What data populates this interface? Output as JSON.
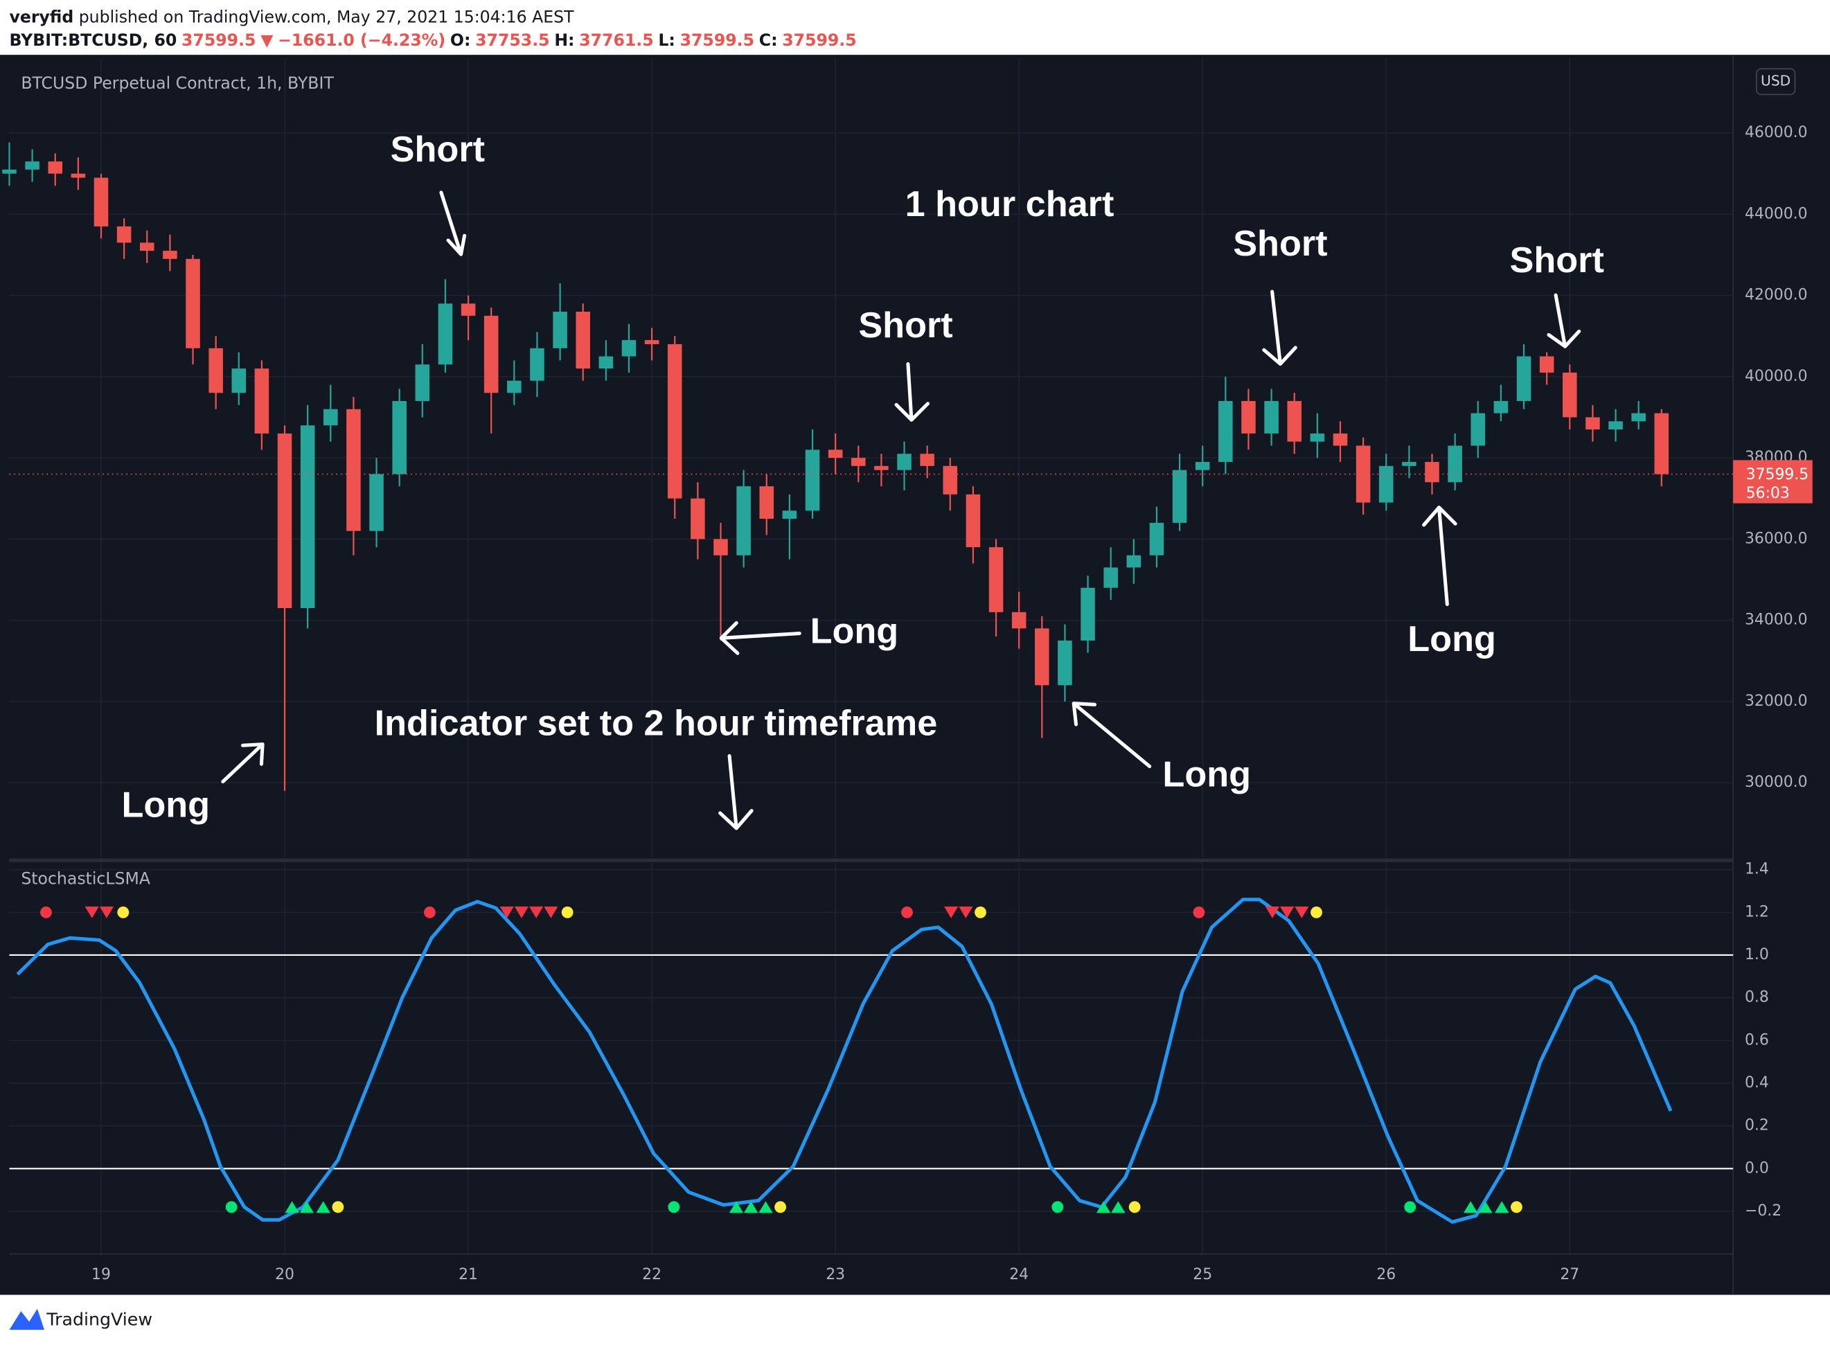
{
  "header": {
    "user": "veryfid",
    "published": "published on TradingView.com, May 27, 2021 15:04:16 AEST",
    "quote": [
      {
        "text": "BYBIT:BTCUSD, 60",
        "color": "#131722"
      },
      {
        "text": "37599.5",
        "color": "#ef5350"
      },
      {
        "text": "▼",
        "color": "#ef5350"
      },
      {
        "text": "−1661.0 (−4.23%)",
        "color": "#ef5350"
      },
      {
        "text": "O:",
        "color": "#131722"
      },
      {
        "text": "37753.5",
        "color": "#ef5350"
      },
      {
        "text": "H:",
        "color": "#131722"
      },
      {
        "text": "37761.5",
        "color": "#ef5350"
      },
      {
        "text": "L:",
        "color": "#131722"
      },
      {
        "text": "37599.5",
        "color": "#ef5350"
      },
      {
        "text": "C:",
        "color": "#131722"
      },
      {
        "text": "37599.5",
        "color": "#ef5350"
      }
    ]
  },
  "footer": {
    "logo": "TradingView"
  },
  "annotations": [
    "Short",
    "1 hour chart",
    "Short",
    "Short",
    "Short",
    "Long",
    "Long",
    "Long",
    "Long",
    "Indicator set to 2 hour timeframe"
  ],
  "chart_data": [
    {
      "type": "candlestick",
      "title": "BTCUSD Perpetual Contract, 1h, BYBIT",
      "currency": "USD",
      "up_color": "#26a69a",
      "down_color": "#ef5350",
      "grid": true,
      "x": [
        18.5,
        18.625,
        18.75,
        18.875,
        19,
        19.125,
        19.25,
        19.375,
        19.5,
        19.625,
        19.75,
        19.875,
        20,
        20.125,
        20.25,
        20.375,
        20.5,
        20.625,
        20.75,
        20.875,
        21,
        21.125,
        21.25,
        21.375,
        21.5,
        21.625,
        21.75,
        21.875,
        22,
        22.125,
        22.25,
        22.375,
        22.5,
        22.625,
        22.75,
        22.875,
        23,
        23.125,
        23.25,
        23.375,
        23.5,
        23.625,
        23.75,
        23.875,
        24,
        24.125,
        24.25,
        24.375,
        24.5,
        24.625,
        24.75,
        24.875,
        25,
        25.125,
        25.25,
        25.375,
        25.5,
        25.625,
        25.75,
        25.875,
        26,
        26.125,
        26.25,
        26.375,
        26.5,
        26.625,
        26.75,
        26.875,
        27,
        27.125,
        27.25,
        27.375,
        27.5
      ],
      "open": [
        45000,
        45100,
        45300,
        45000,
        44900,
        43700,
        43300,
        43100,
        42900,
        40700,
        39600,
        40200,
        38600,
        34300,
        38800,
        39200,
        36200,
        37600,
        39400,
        40300,
        41800,
        41500,
        39600,
        39900,
        40700,
        41600,
        40200,
        40500,
        40900,
        40800,
        37000,
        36000,
        35600,
        37300,
        36500,
        36700,
        38200,
        38000,
        37800,
        37700,
        38100,
        37800,
        37100,
        35800,
        34200,
        33800,
        32400,
        33500,
        34800,
        35300,
        35600,
        36400,
        37700,
        37900,
        39400,
        38600,
        39400,
        38400,
        38600,
        38300,
        36900,
        37800,
        37900,
        37400,
        38300,
        39100,
        39400,
        40500,
        40100,
        39000,
        38700,
        38900,
        39100
      ],
      "high": [
        45770,
        45600,
        45500,
        45400,
        45000,
        43900,
        43600,
        43500,
        43000,
        41000,
        40600,
        40400,
        38800,
        39300,
        39800,
        39500,
        38000,
        39700,
        40800,
        42400,
        42000,
        41700,
        40400,
        41100,
        42300,
        41800,
        40900,
        41300,
        41200,
        41000,
        37400,
        36400,
        37700,
        37600,
        37100,
        38700,
        38600,
        38300,
        38100,
        38400,
        38300,
        38000,
        37300,
        36000,
        34700,
        34100,
        33900,
        35100,
        35800,
        36000,
        36800,
        38100,
        38300,
        40000,
        39700,
        39700,
        39600,
        39100,
        38900,
        38500,
        38100,
        38300,
        38100,
        38600,
        39400,
        39800,
        40800,
        40600,
        40300,
        39300,
        39200,
        39400,
        39200
      ],
      "low": [
        44700,
        44800,
        44700,
        44600,
        43400,
        42900,
        42800,
        42600,
        40300,
        39200,
        39300,
        38200,
        29800,
        33800,
        38400,
        35600,
        35800,
        37300,
        39000,
        40100,
        40900,
        38600,
        39300,
        39500,
        40400,
        39900,
        39900,
        40100,
        40400,
        36500,
        35500,
        33500,
        35300,
        36100,
        35500,
        36500,
        37600,
        37400,
        37300,
        37200,
        37500,
        36700,
        35400,
        33600,
        33300,
        31100,
        32000,
        33200,
        34500,
        34900,
        35300,
        36200,
        37300,
        37600,
        38200,
        38300,
        38100,
        38000,
        37900,
        36600,
        36700,
        37500,
        37100,
        37200,
        38000,
        38900,
        39200,
        39800,
        38700,
        38400,
        38400,
        38700,
        37300
      ],
      "close": [
        45100,
        45300,
        45000,
        44900,
        43700,
        43300,
        43100,
        42900,
        40700,
        39600,
        40200,
        38600,
        34300,
        38800,
        39200,
        36200,
        37600,
        39400,
        40300,
        41800,
        41500,
        39600,
        39900,
        40700,
        41600,
        40200,
        40500,
        40900,
        40800,
        37000,
        36000,
        35600,
        37300,
        36500,
        36700,
        38200,
        38000,
        37800,
        37700,
        38100,
        37800,
        37100,
        35800,
        34200,
        33800,
        32400,
        33500,
        34800,
        35300,
        35600,
        36400,
        37700,
        37900,
        39400,
        38600,
        39400,
        38400,
        38600,
        38300,
        36900,
        37800,
        37900,
        37400,
        38300,
        39100,
        39400,
        40500,
        40100,
        39000,
        38700,
        38900,
        39100,
        37599.5
      ],
      "price_tag": {
        "value": 37599.5,
        "countdown": "56:03",
        "color": "#ef5350"
      },
      "xlim": [
        18.5,
        27.89
      ],
      "ylim": [
        28160,
        47840
      ],
      "yticks": [
        {
          "value": 30000,
          "label": "30000.0"
        },
        {
          "value": 32000,
          "label": "32000.0"
        },
        {
          "value": 34000,
          "label": "34000.0"
        },
        {
          "value": 36000,
          "label": "36000.0"
        },
        {
          "value": 38000,
          "label": "38000.0"
        },
        {
          "value": 40000,
          "label": "40000.0"
        },
        {
          "value": 42000,
          "label": "42000.0"
        },
        {
          "value": 44000,
          "label": "44000.0"
        },
        {
          "value": 46000,
          "label": "46000.0"
        }
      ]
    },
    {
      "type": "line",
      "grid": true,
      "x": [
        18.545,
        18.71,
        18.83,
        18.99,
        19.08,
        19.21,
        19.4,
        19.56,
        19.65,
        19.78,
        19.88,
        19.97,
        20.1,
        20.29,
        20.48,
        20.64,
        20.8,
        20.93,
        21.05,
        21.15,
        21.28,
        21.47,
        21.66,
        21.85,
        22.01,
        22.2,
        22.39,
        22.58,
        22.77,
        22.96,
        23.15,
        23.31,
        23.47,
        23.56,
        23.69,
        23.85,
        24.01,
        24.17,
        24.33,
        24.45,
        24.58,
        24.74,
        24.89,
        25.05,
        25.22,
        25.31,
        25.47,
        25.63,
        25.82,
        26.01,
        26.17,
        26.36,
        26.49,
        26.65,
        26.84,
        27.03,
        27.14,
        27.22,
        27.35,
        27.55
      ],
      "series": [
        {
          "name": "StochasticLSMA",
          "color": "#2196f3",
          "values": [
            0.91,
            1.05,
            1.08,
            1.07,
            1.02,
            0.87,
            0.56,
            0.23,
            0.01,
            -0.18,
            -0.24,
            -0.24,
            -0.18,
            0.04,
            0.45,
            0.8,
            1.08,
            1.21,
            1.25,
            1.22,
            1.1,
            0.86,
            0.64,
            0.34,
            0.07,
            -0.11,
            -0.17,
            -0.15,
            0.01,
            0.37,
            0.77,
            1.02,
            1.12,
            1.13,
            1.04,
            0.77,
            0.37,
            0.01,
            -0.15,
            -0.18,
            -0.04,
            0.31,
            0.83,
            1.13,
            1.26,
            1.26,
            1.16,
            0.96,
            0.56,
            0.15,
            -0.15,
            -0.25,
            -0.22,
            0.01,
            0.5,
            0.84,
            0.9,
            0.87,
            0.67,
            0.27
          ]
        }
      ],
      "markers": [
        {
          "shape": "circle",
          "color": "#f23645",
          "y": 1.2,
          "x": [
            18.7,
            20.79,
            23.39,
            24.98
          ]
        },
        {
          "shape": "triangle-down",
          "color": "#f23645",
          "y": 1.2,
          "x": [
            18.95,
            19.03,
            21.21,
            21.29,
            21.37,
            21.45,
            23.63,
            23.71,
            25.38,
            25.46,
            25.54
          ]
        },
        {
          "shape": "circle",
          "color": "#ffeb3b",
          "y": 1.2,
          "x": [
            19.12,
            21.54,
            23.79,
            25.62
          ]
        },
        {
          "shape": "circle",
          "color": "#00e676",
          "y": -0.18,
          "x": [
            19.71,
            22.12,
            24.21,
            26.13
          ]
        },
        {
          "shape": "triangle-up",
          "color": "#00e676",
          "y": -0.18,
          "x": [
            20.04,
            20.12,
            20.21,
            22.46,
            22.54,
            22.62,
            24.46,
            24.54,
            26.46,
            26.54,
            26.63
          ]
        },
        {
          "shape": "circle",
          "color": "#ffeb3b",
          "y": -0.18,
          "x": [
            20.29,
            22.7,
            24.63,
            26.71
          ]
        }
      ],
      "hlines": [
        1,
        0
      ],
      "xlim": [
        18.5,
        27.89
      ],
      "ylim": [
        -0.4,
        1.43
      ],
      "xticks": [
        19,
        20,
        21,
        22,
        23,
        24,
        25,
        26,
        27
      ],
      "yticks": [
        1.4,
        1.2,
        {
          "value": 1,
          "label": "1.0"
        },
        0.8,
        0.6,
        0.4,
        0.2,
        {
          "value": 0,
          "label": "0.0"
        },
        {
          "value": -0.2,
          "label": "−0.2"
        }
      ]
    }
  ]
}
